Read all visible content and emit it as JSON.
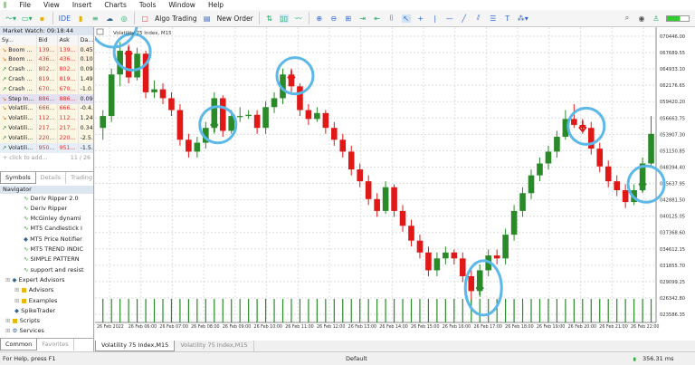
{
  "menu": [
    "File",
    "View",
    "Insert",
    "Charts",
    "Tools",
    "Window",
    "Help"
  ],
  "toolbar": {
    "ide": "IDE",
    "algo_trading": "Algo Trading",
    "new_order": "New Order"
  },
  "market_watch": {
    "title": "Market Watch: 09:18:44",
    "columns": [
      "Sy...",
      "Bid",
      "Ask",
      "Da..."
    ],
    "rows": [
      {
        "symbol": "Boom ...",
        "bid": "139...",
        "ask": "139...",
        "daily": "0.45...",
        "dir": "down",
        "bg": "#fdf1e0"
      },
      {
        "symbol": "Boom ...",
        "bid": "436...",
        "ask": "436...",
        "daily": "0.10...",
        "dir": "down",
        "bg": "#fdf1e0"
      },
      {
        "symbol": "Crash ...",
        "bid": "802...",
        "ask": "802...",
        "daily": "0.09...",
        "dir": "up",
        "bg": "#fbf7e3"
      },
      {
        "symbol": "Crash ...",
        "bid": "819...",
        "ask": "819...",
        "daily": "1.49...",
        "dir": "up",
        "bg": "#fbf7e3"
      },
      {
        "symbol": "Crash ...",
        "bid": "670...",
        "ask": "670...",
        "daily": "-1.0...",
        "dir": "up",
        "bg": "#fbf7e3"
      },
      {
        "symbol": "Step In...",
        "bid": "886...",
        "ask": "886...",
        "daily": "0.09...",
        "dir": "down",
        "bg": "#e4e0f2"
      },
      {
        "symbol": "Volatili...",
        "bid": "666...",
        "ask": "666...",
        "daily": "-0.4...",
        "dir": "down",
        "bg": "#fbf7e3"
      },
      {
        "symbol": "Volatili...",
        "bid": "112...",
        "ask": "112...",
        "daily": "1.24...",
        "dir": "down",
        "bg": "#fbf7e3"
      },
      {
        "symbol": "Volatili...",
        "bid": "217...",
        "ask": "217...",
        "daily": "0.34...",
        "dir": "up",
        "bg": "#fbf7e3"
      },
      {
        "symbol": "Volatili...",
        "bid": "220...",
        "ask": "220...",
        "daily": "-2.5...",
        "dir": "up",
        "bg": "#fbf7e3"
      },
      {
        "symbol": "Volatili...",
        "bid": "950...",
        "ask": "951...",
        "daily": "-1.5...",
        "dir": "up",
        "bg": "#e6eef8"
      }
    ],
    "add": "+ click to add...",
    "count": "11 / 26",
    "tabs": [
      "Symbols",
      "Details",
      "Trading"
    ]
  },
  "navigator": {
    "title": "Navigator",
    "items": [
      {
        "label": "Deriv Ripper 2.0",
        "icon": "indicator"
      },
      {
        "label": "Deriv Ripper",
        "icon": "indicator"
      },
      {
        "label": "McGinley dynami",
        "icon": "indicator"
      },
      {
        "label": "MT5 Candlestick I",
        "icon": "indicator"
      },
      {
        "label": "MT5 Price Notifier",
        "icon": "ea"
      },
      {
        "label": "MT5 TREND INDIC",
        "icon": "indicator"
      },
      {
        "label": "SIMPLE PATTERN",
        "icon": "indicator"
      },
      {
        "label": "support and resist",
        "icon": "indicator"
      },
      {
        "label": "Expert Advisors",
        "icon": "ea",
        "level": 0
      },
      {
        "label": "Advisors",
        "icon": "folder",
        "level": 1
      },
      {
        "label": "Examples",
        "icon": "folder",
        "level": 1
      },
      {
        "label": "SpikeTrader",
        "icon": "ea",
        "level": 1
      },
      {
        "label": "Scripts",
        "icon": "folder",
        "level": 0
      },
      {
        "label": "Services",
        "icon": "gear",
        "level": 0
      }
    ],
    "tabs": [
      "Common",
      "Favorites"
    ]
  },
  "chart": {
    "title": "Volatility 75 Index, M15",
    "price_labels": [
      "070446.00",
      "067689.55",
      "064933.10",
      "062176.65",
      "059420.20",
      "056663.75",
      "053907.30",
      "051150.85",
      "048394.40",
      "045637.95",
      "042881.50",
      "040125.05",
      "037368.60",
      "034612.15",
      "031855.70",
      "029099.25",
      "026342.80",
      "023586.35"
    ],
    "time_labels": [
      "26 Feb 2022",
      "26 Feb 06:00",
      "26 Feb 07:00",
      "26 Feb 08:00",
      "26 Feb 09:00",
      "26 Feb 10:00",
      "26 Feb 11:00",
      "26 Feb 12:00",
      "26 Feb 13:00",
      "26 Feb 14:00",
      "26 Feb 15:00",
      "26 Feb 16:00",
      "26 Feb 17:00",
      "26 Feb 18:00",
      "26 Feb 19:00",
      "26 Feb 20:00",
      "26 Feb 21:00",
      "26 Feb 22:00"
    ],
    "bull_color": "#2a8a2a",
    "bear_color": "#e01818",
    "annotation_color": "#5bb8e8",
    "candles_ohlc": [
      [
        55000,
        58000,
        53000,
        57000
      ],
      [
        57000,
        65000,
        56000,
        64000
      ],
      [
        64000,
        69500,
        62000,
        68000
      ],
      [
        68000,
        69000,
        62500,
        63500
      ],
      [
        63500,
        68500,
        63000,
        67500
      ],
      [
        67500,
        68000,
        60000,
        61000
      ],
      [
        61000,
        63000,
        60000,
        61500
      ],
      [
        61500,
        62500,
        59000,
        60000
      ],
      [
        60000,
        61000,
        57000,
        58000
      ],
      [
        58000,
        59000,
        52000,
        53000
      ],
      [
        53000,
        54000,
        50000,
        51000
      ],
      [
        51000,
        53500,
        50000,
        52500
      ],
      [
        52500,
        56000,
        51500,
        55000
      ],
      [
        55000,
        61000,
        54000,
        60000
      ],
      [
        60000,
        60500,
        53500,
        54500
      ],
      [
        54500,
        58000,
        54000,
        57000
      ],
      [
        57000,
        58500,
        56000,
        57000
      ],
      [
        57000,
        58000,
        56500,
        57200
      ],
      [
        57200,
        58000,
        54000,
        55000
      ],
      [
        55000,
        59500,
        54000,
        58500
      ],
      [
        58500,
        61000,
        57500,
        60000
      ],
      [
        60000,
        65000,
        59000,
        64000
      ],
      [
        64000,
        65000,
        61000,
        62000
      ],
      [
        62000,
        62500,
        57000,
        58000
      ],
      [
        58000,
        59000,
        55500,
        56500
      ],
      [
        56500,
        58500,
        56000,
        57500
      ],
      [
        57500,
        58000,
        54000,
        55000
      ],
      [
        55000,
        56000,
        52000,
        53000
      ],
      [
        53000,
        54000,
        50000,
        51000
      ],
      [
        51000,
        52000,
        47000,
        48000
      ],
      [
        48000,
        49000,
        45000,
        46000
      ],
      [
        46000,
        47000,
        42000,
        43000
      ],
      [
        43000,
        44000,
        40000,
        41000
      ],
      [
        41000,
        46000,
        40500,
        45000
      ],
      [
        45000,
        45500,
        40000,
        41000
      ],
      [
        41000,
        42000,
        37500,
        38500
      ],
      [
        38500,
        39500,
        35000,
        36000
      ],
      [
        36000,
        37000,
        33000,
        34000
      ],
      [
        34000,
        35000,
        30000,
        31000
      ],
      [
        31000,
        34000,
        30000,
        33000
      ],
      [
        33000,
        35000,
        32000,
        34000
      ],
      [
        34000,
        34500,
        32000,
        33000
      ],
      [
        33000,
        34000,
        29000,
        30000
      ],
      [
        30000,
        31000,
        25500,
        27500
      ],
      [
        27500,
        32000,
        26500,
        31000
      ],
      [
        31000,
        34500,
        30000,
        33500
      ],
      [
        33500,
        34500,
        32000,
        33000
      ],
      [
        33000,
        38000,
        32000,
        37000
      ],
      [
        37000,
        42000,
        36000,
        41000
      ],
      [
        41000,
        45000,
        40000,
        44000
      ],
      [
        44000,
        48000,
        43000,
        47000
      ],
      [
        47000,
        50000,
        46000,
        49000
      ],
      [
        49000,
        52000,
        48000,
        51000
      ],
      [
        51000,
        54500,
        50000,
        53500
      ],
      [
        53500,
        58000,
        53000,
        56500
      ],
      [
        56500,
        59000,
        55000,
        55500
      ],
      [
        55500,
        56500,
        54000,
        55000
      ],
      [
        55000,
        56000,
        50500,
        51500
      ],
      [
        51500,
        52500,
        47500,
        48500
      ],
      [
        48500,
        49500,
        45000,
        46000
      ],
      [
        46000,
        47000,
        43500,
        44500
      ],
      [
        44500,
        45500,
        41500,
        42500
      ],
      [
        42500,
        45500,
        42000,
        44500
      ],
      [
        44500,
        50000,
        44000,
        49000
      ],
      [
        49000,
        57000,
        48500,
        54000
      ]
    ],
    "signals": [
      {
        "candle": 3,
        "type": "sell"
      },
      {
        "candle": 13,
        "type": "buy"
      },
      {
        "candle": 22,
        "type": "sell"
      },
      {
        "candle": 44,
        "type": "buy"
      },
      {
        "candle": 56,
        "type": "sell"
      },
      {
        "candle": 63,
        "type": "buy"
      }
    ]
  },
  "chart_tabs": [
    "Volatility 75 Index,M15",
    "Volatility 75 Index,M15"
  ],
  "status": {
    "help": "For Help, press F1",
    "profile": "Default",
    "ping": "356.31 ms"
  }
}
